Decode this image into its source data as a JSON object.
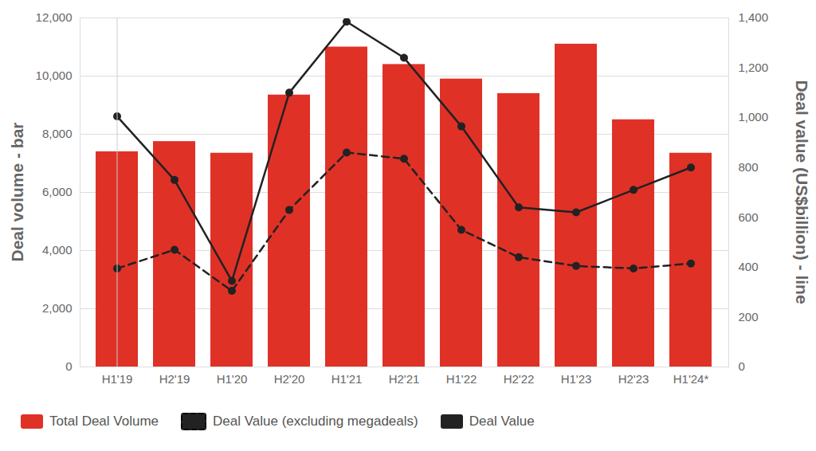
{
  "chart_data": {
    "type": "bar",
    "categories": [
      "H1'19",
      "H2'19",
      "H1'20",
      "H2'20",
      "H1'21",
      "H2'21",
      "H1'22",
      "H2'22",
      "H1'23",
      "H2'23",
      "H1'24*"
    ],
    "y_label": "Deal volume - bar",
    "y2_label": "Deal value (US$billion) - line",
    "ylim": [
      0,
      12000
    ],
    "yticks": [
      0,
      {
        "value": 2000,
        "label": "2,000"
      },
      {
        "value": 4000,
        "label": "4,000"
      },
      {
        "value": 6000,
        "label": "6,000"
      },
      {
        "value": 8000,
        "label": "8,000"
      },
      {
        "value": 10000,
        "label": "10,000"
      },
      {
        "value": 12000,
        "label": "12,000"
      }
    ],
    "y2lim": [
      0,
      1400
    ],
    "y2ticks": [
      0,
      200,
      400,
      600,
      800,
      {
        "value": 1000,
        "label": "1,000"
      },
      {
        "value": 1200,
        "label": "1,200"
      },
      {
        "value": 1400,
        "label": "1,400"
      }
    ],
    "grid": true,
    "legend": "bottom",
    "series": [
      {
        "name": "Total Deal Volume",
        "type": "bar",
        "color": "#e03127",
        "axis": "y",
        "values": [
          7400,
          7750,
          7350,
          9350,
          11000,
          10400,
          9900,
          9400,
          11100,
          8500,
          7350
        ]
      },
      {
        "name": "Deal Value (excluding megadeals)",
        "type": "line",
        "color": "#222222",
        "axis": "y2",
        "line_style": "dashed",
        "marker": "circle",
        "values": [
          395,
          470,
          305,
          630,
          860,
          835,
          550,
          440,
          405,
          395,
          415
        ]
      },
      {
        "name": "Deal Value",
        "type": "line",
        "color": "#222222",
        "axis": "y2",
        "line_style": "solid",
        "marker": "circle",
        "values": [
          1005,
          750,
          345,
          1100,
          1385,
          1240,
          965,
          640,
          620,
          710,
          800
        ]
      }
    ]
  }
}
